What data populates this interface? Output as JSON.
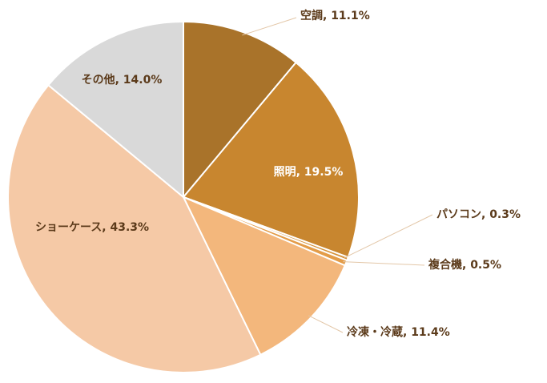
{
  "chart_data": {
    "type": "pie",
    "labels": [
      "空調, 11.1%",
      "照明, 19.5%",
      "パソコン, 0.3%",
      "複合機, 0.5%",
      "冷凍・冷蔵, 11.4%",
      "ショーケース, 43.3%",
      "その他, 14.0%"
    ],
    "values": [
      11.1,
      19.5,
      0.3,
      0.5,
      11.4,
      43.3,
      14.0
    ],
    "colors": [
      "#a9732a",
      "#c8862f",
      "#d5923a",
      "#e39c48",
      "#f3b77c",
      "#f5c9a6",
      "#d9d9d9"
    ]
  }
}
